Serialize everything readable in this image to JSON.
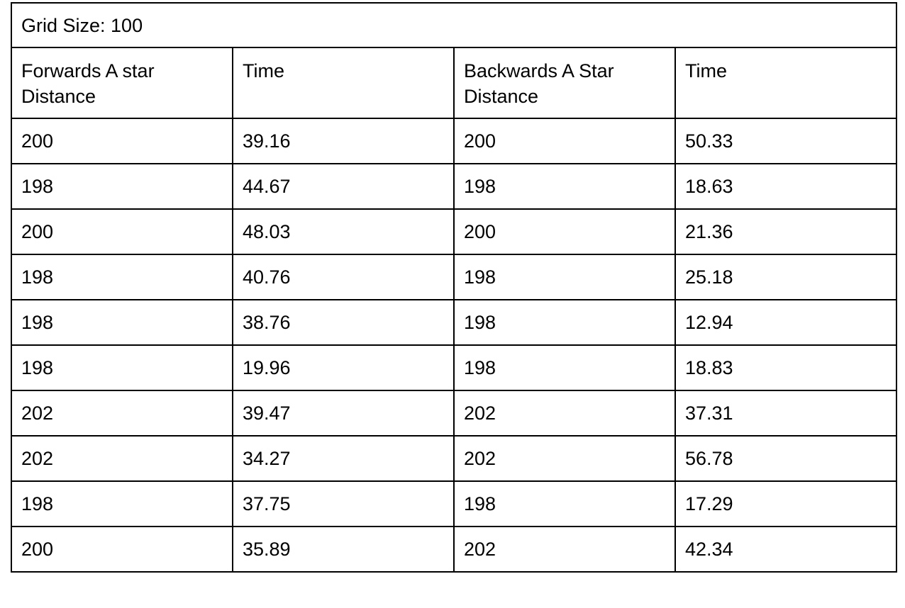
{
  "title": "Grid Size: 100",
  "headers": [
    "Forwards A star Distance",
    "Time",
    "Backwards A Star Distance",
    "Time"
  ],
  "rows": [
    [
      "200",
      "39.16",
      "200",
      "50.33"
    ],
    [
      "198",
      "44.67",
      "198",
      "18.63"
    ],
    [
      "200",
      "48.03",
      "200",
      "21.36"
    ],
    [
      "198",
      "40.76",
      "198",
      "25.18"
    ],
    [
      "198",
      "38.76",
      "198",
      "12.94"
    ],
    [
      "198",
      "19.96",
      "198",
      "18.83"
    ],
    [
      "202",
      "39.47",
      "202",
      "37.31"
    ],
    [
      "202",
      "34.27",
      "202",
      "56.78"
    ],
    [
      "198",
      "37.75",
      "198",
      "17.29"
    ],
    [
      "200",
      "35.89",
      "202",
      "42.34"
    ]
  ]
}
